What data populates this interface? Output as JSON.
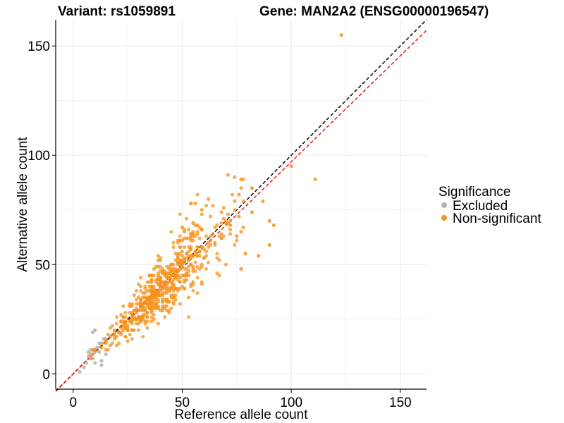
{
  "chart_data": {
    "type": "scatter",
    "title_left": "Variant: rs1059891",
    "title_right": "Gene: MAN2A2 (ENSG00000196547)",
    "xlabel": "Reference allele count",
    "ylabel": "Alternative allele count",
    "xlim": [
      -8,
      162
    ],
    "ylim": [
      -7,
      162
    ],
    "xticks": [
      0,
      50,
      100,
      150
    ],
    "yticks": [
      0,
      50,
      100,
      150
    ],
    "grid": true,
    "legend": {
      "title": "Significance",
      "position": "right",
      "entries": [
        {
          "label": "Excluded",
          "color": "#b3b3b3"
        },
        {
          "label": "Non-significant",
          "color": "#f7931e"
        }
      ]
    },
    "reference_lines": [
      {
        "name": "identity",
        "slope": 1.0,
        "intercept": 0,
        "color": "#000000",
        "style": "dashed"
      },
      {
        "name": "fitted",
        "slope": 0.97,
        "intercept": 0,
        "color": "#e41a1c",
        "style": "dashed"
      }
    ],
    "generator": {
      "n": 600,
      "seed": 1059891,
      "ref_range": [
        8,
        78
      ],
      "ratio_mean": 0.97,
      "ratio_sd": 0.17
    },
    "series": [
      {
        "name": "Excluded",
        "color": "#b3b3b3",
        "points": [
          [
            3,
            1
          ],
          [
            5,
            3
          ],
          [
            6,
            5
          ],
          [
            7,
            8
          ],
          [
            7,
            10
          ],
          [
            8,
            7
          ],
          [
            8,
            11
          ],
          [
            9,
            9
          ],
          [
            9,
            19
          ],
          [
            10,
            20
          ],
          [
            11,
            12
          ],
          [
            12,
            10
          ],
          [
            13,
            6
          ],
          [
            13,
            4
          ],
          [
            14,
            16
          ],
          [
            15,
            9
          ],
          [
            10,
            5
          ],
          [
            12,
            14
          ]
        ]
      },
      {
        "name": "Non-significant",
        "color": "#f7931e",
        "points": [
          [
            123,
            155
          ],
          [
            100,
            95
          ],
          [
            111,
            89
          ],
          [
            77,
            89
          ],
          [
            76,
            82
          ],
          [
            82,
            85
          ],
          [
            87,
            79
          ],
          [
            76,
            72
          ],
          [
            82,
            74
          ],
          [
            78,
            67
          ],
          [
            72,
            68
          ],
          [
            90,
            70
          ],
          [
            92,
            68
          ],
          [
            56,
            78
          ],
          [
            62,
            80
          ],
          [
            59,
            75
          ],
          [
            90,
            59
          ],
          [
            85,
            54
          ],
          [
            77,
            48
          ],
          [
            77,
            65
          ],
          [
            75,
            63
          ],
          [
            79,
            55
          ],
          [
            57,
            68
          ],
          [
            51,
            62
          ],
          [
            50,
            67
          ],
          [
            54,
            64
          ],
          [
            55,
            69
          ]
        ]
      }
    ]
  }
}
